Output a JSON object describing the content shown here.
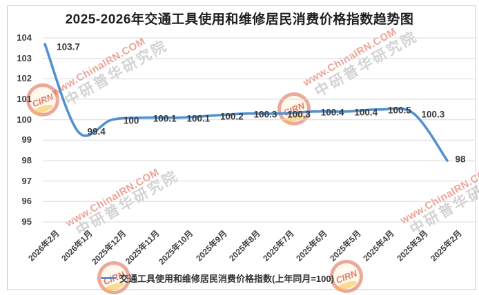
{
  "title": "2025-2026年交通工具使用和维修居民消费价格指数趋势图",
  "legend": {
    "label": "交通工具使用和维修居民消费价格指数(上年同月=100)",
    "line_color": "#5390D2"
  },
  "watermark": {
    "logo_text": "CIRN",
    "url_text": "www.ChinaIRN.COM",
    "org_text": "中研普华研究院"
  },
  "colors": {
    "line": "#5390D2",
    "grid": "#D9D9D9",
    "axis_text": "#404040",
    "data_label": "#383838"
  },
  "chart_data": {
    "type": "line",
    "smooth": true,
    "grid": true,
    "legend_position": "bottom",
    "title": "2025-2026年交通工具使用和维修居民消费价格指数趋势图",
    "xlabel": "",
    "ylabel": "",
    "ylim": [
      95,
      104
    ],
    "yticks": [
      104,
      103,
      102,
      101,
      100,
      99,
      98,
      97,
      96,
      95
    ],
    "categories": [
      "2026年2月",
      "2026年1月",
      "2025年12月",
      "2025年11月",
      "2025年10月",
      "2025年9月",
      "2025年8月",
      "2025年7月",
      "2025年6月",
      "2025年5月",
      "2025年4月",
      "2025年3月",
      "2025年2月"
    ],
    "series": [
      {
        "name": "交通工具使用和维修居民消费价格指数(上年同月=100)",
        "values": [
          103.7,
          99.4,
          100,
          100.1,
          100.1,
          100.2,
          100.3,
          100.3,
          100.4,
          100.4,
          100.5,
          100.3,
          98
        ],
        "labels": [
          "103.7",
          "99.4",
          "100",
          "100.1",
          "100.1",
          "100.2",
          "100.3",
          "100.3",
          "100.4",
          "100.4",
          "100.5",
          "100.3",
          "98"
        ],
        "color": "#5390D2"
      }
    ]
  }
}
